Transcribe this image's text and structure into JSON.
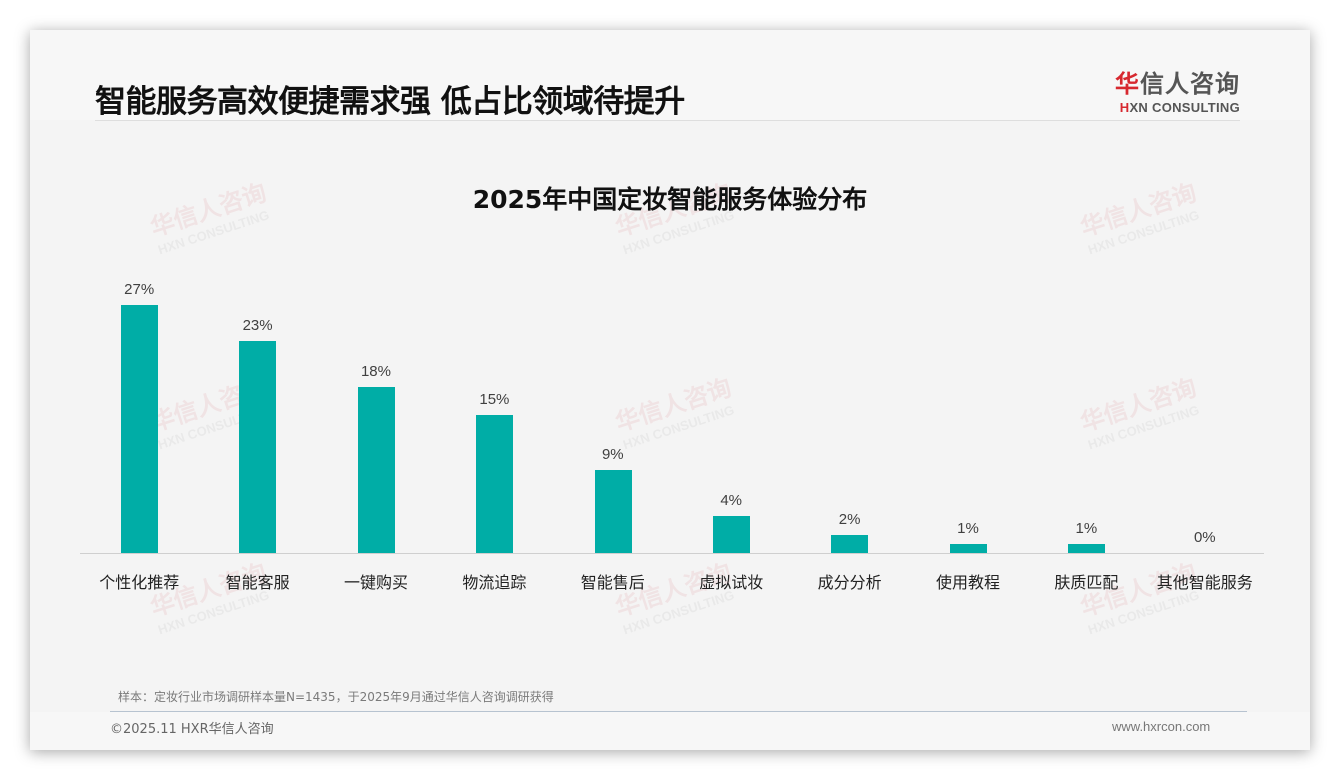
{
  "header": {
    "title": "智能服务高效便捷需求强 低占比领域待提升",
    "logo": {
      "cn_first": "华",
      "cn_rest": "信人咨询",
      "en_first": "H",
      "en_rest": "XN CONSULTING"
    }
  },
  "watermark": {
    "cn": "华信人咨询",
    "en": "HXN CONSULTING"
  },
  "chart_data": {
    "type": "bar",
    "title": "2025年中国定妆智能服务体验分布",
    "xlabel": "",
    "ylabel": "",
    "categories": [
      "个性化推荐",
      "智能客服",
      "一键购买",
      "物流追踪",
      "智能售后",
      "虚拟试妆",
      "成分分析",
      "使用教程",
      "肤质匹配",
      "其他智能服务"
    ],
    "values": [
      27,
      23,
      18,
      15,
      9,
      4,
      2,
      1,
      1,
      0
    ],
    "value_labels": [
      "27%",
      "23%",
      "18%",
      "15%",
      "9%",
      "4%",
      "2%",
      "1%",
      "1%",
      "0%"
    ],
    "unit": "%",
    "ylim": [
      0,
      30
    ],
    "grid": false,
    "legend": "none",
    "bar_color": "#00ada6"
  },
  "footer": {
    "note": "样本：定妆行业市场调研样本量N=1435，于2025年9月通过华信人咨询调研获得",
    "copyright": "©2025.11 HXR华信人咨询",
    "website": "www.hxrcon.com"
  },
  "colors": {
    "accent": "#00ada6",
    "brand_red": "#d7282f",
    "title": "#111111"
  }
}
